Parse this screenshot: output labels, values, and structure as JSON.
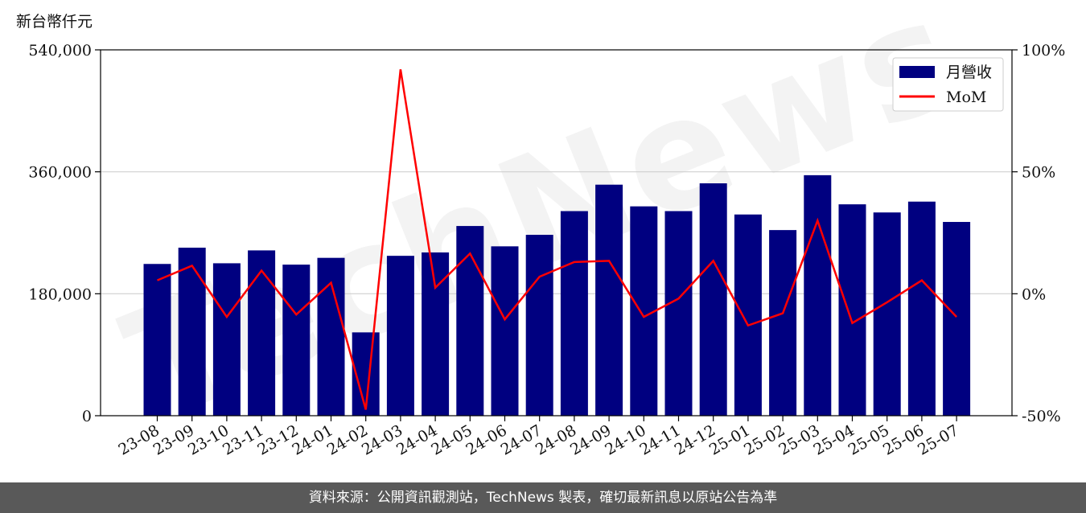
{
  "watermark": "TechNews",
  "footer": "資料來源：公開資訊觀測站，TechNews 製表，確切最新訊息以原站公告為準",
  "chart_data": {
    "type": "bar",
    "y_unit_label": "新台幣仟元",
    "categories": [
      "23-08",
      "23-09",
      "23-10",
      "23-11",
      "23-12",
      "24-01",
      "24-02",
      "24-03",
      "24-04",
      "24-05",
      "24-06",
      "24-07",
      "24-08",
      "24-09",
      "24-10",
      "24-11",
      "24-12",
      "25-01",
      "25-02",
      "25-03",
      "25-04",
      "25-05",
      "25-06",
      "25-07"
    ],
    "series": [
      {
        "name": "月營收",
        "type": "bar",
        "axis": "left",
        "color": "#000080",
        "values": [
          224000,
          248000,
          225000,
          244000,
          223000,
          233000,
          123000,
          236000,
          241000,
          280000,
          250000,
          267000,
          302000,
          341000,
          309000,
          302000,
          343000,
          297000,
          274000,
          355000,
          312000,
          300000,
          316000,
          286000
        ]
      },
      {
        "name": "MoM",
        "type": "line",
        "axis": "right",
        "color": "#ff0000",
        "unit": "%",
        "values": [
          5.5,
          11.5,
          -9.5,
          9.5,
          -8.5,
          4.5,
          -47.5,
          92,
          2.5,
          16.5,
          -10.5,
          7,
          13,
          13.5,
          -9.5,
          -2,
          13.5,
          -13,
          -8,
          30,
          -12,
          -3.5,
          5.5,
          -9.5
        ]
      }
    ],
    "y_left": {
      "range": [
        0,
        540000
      ],
      "ticks": [
        0,
        180000,
        360000,
        540000
      ],
      "tick_labels": [
        "0",
        "180,000",
        "360,000",
        "540,000"
      ]
    },
    "y_right": {
      "range": [
        -50,
        100
      ],
      "ticks": [
        -50,
        0,
        50,
        100
      ],
      "tick_labels": [
        "-50%",
        "0%",
        "50%",
        "100%"
      ]
    },
    "grid": "horizontal",
    "legend": {
      "position": "top-right",
      "entries": [
        "月營收",
        "MoM"
      ]
    }
  }
}
